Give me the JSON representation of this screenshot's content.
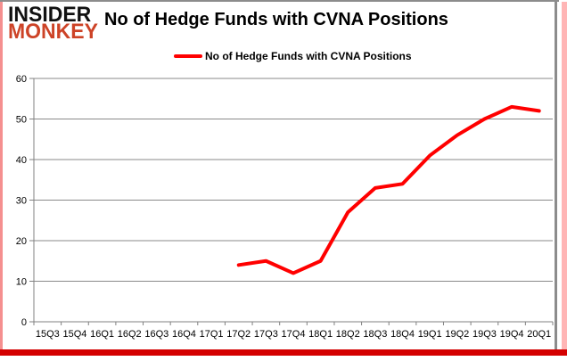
{
  "branding": {
    "logo_line1": "INSIDER",
    "logo_line2": "MONKEY",
    "logo_color1": "#111111",
    "logo_color2": "#cd4327"
  },
  "header": {
    "title": "No of Hedge Funds with CVNA Positions"
  },
  "legend": {
    "label": "No of Hedge Funds with CVNA Positions",
    "line_color": "#ff0000"
  },
  "chart_data": {
    "type": "line",
    "title": "No of Hedge Funds with CVNA Positions",
    "categories": [
      "15Q3",
      "15Q4",
      "16Q1",
      "16Q2",
      "16Q3",
      "16Q4",
      "17Q1",
      "17Q2",
      "17Q3",
      "17Q4",
      "18Q1",
      "18Q2",
      "18Q3",
      "18Q4",
      "19Q1",
      "19Q2",
      "19Q3",
      "19Q4",
      "20Q1"
    ],
    "series": [
      {
        "name": "No of Hedge Funds with CVNA Positions",
        "color": "#ff0000",
        "values": [
          null,
          null,
          null,
          null,
          null,
          null,
          null,
          14,
          15,
          12,
          15,
          27,
          33,
          34,
          41,
          46,
          50,
          53,
          52
        ]
      }
    ],
    "xlabel": "",
    "ylabel": "",
    "ylim": [
      0,
      60
    ],
    "y_ticks": [
      0,
      10,
      20,
      30,
      40,
      50,
      60
    ],
    "grid": "horizontal",
    "legend_position": "top"
  },
  "frame": {
    "axis_color": "#808080",
    "grid_color": "#8a8a8a",
    "tick_label_color": "#000000",
    "bottom_bar_color": "#d40000",
    "left_edge_color": "#f58f8f",
    "right_edge_color": "#ffb5b5",
    "border_color": "#8c8c8c"
  }
}
